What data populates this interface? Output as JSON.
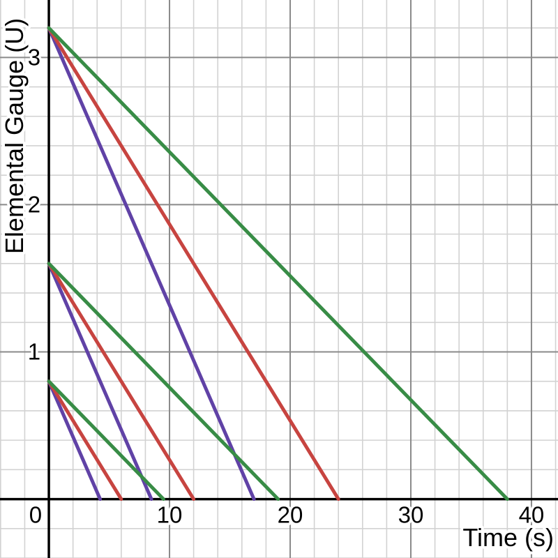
{
  "chart_data": {
    "type": "line",
    "title": "",
    "xlabel": "Time (s)",
    "ylabel": "Elemental Gauge (U)",
    "xlim": [
      -4.05,
      42.2
    ],
    "ylim": [
      -0.4,
      3.39
    ],
    "x_major_ticks": [
      0,
      10,
      20,
      30,
      40
    ],
    "y_major_ticks": [
      1,
      2,
      3
    ],
    "x_minor_step": 2,
    "y_minor_step": 0.2,
    "grid": true,
    "legend_position": "none",
    "series": [
      {
        "name": "purple-0.8U",
        "color": "#6042a6",
        "points": [
          [
            0,
            0.8
          ],
          [
            4.25,
            0
          ]
        ]
      },
      {
        "name": "purple-1.6U",
        "color": "#6042a6",
        "points": [
          [
            0,
            1.6
          ],
          [
            8.5,
            0
          ]
        ]
      },
      {
        "name": "purple-3.2U",
        "color": "#6042a6",
        "points": [
          [
            0,
            3.2
          ],
          [
            17,
            0
          ]
        ]
      },
      {
        "name": "red-0.8U",
        "color": "#c74440",
        "points": [
          [
            0,
            0.8
          ],
          [
            6,
            0
          ]
        ]
      },
      {
        "name": "red-1.6U",
        "color": "#c74440",
        "points": [
          [
            0,
            1.6
          ],
          [
            12,
            0
          ]
        ]
      },
      {
        "name": "red-3.2U",
        "color": "#c74440",
        "points": [
          [
            0,
            3.2
          ],
          [
            24,
            0
          ]
        ]
      },
      {
        "name": "green-0.8U",
        "color": "#388c46",
        "points": [
          [
            0,
            0.8
          ],
          [
            9.5,
            0
          ]
        ]
      },
      {
        "name": "green-1.6U",
        "color": "#388c46",
        "points": [
          [
            0,
            1.6
          ],
          [
            19,
            0
          ]
        ]
      },
      {
        "name": "green-3.2U",
        "color": "#388c46",
        "points": [
          [
            0,
            3.2
          ],
          [
            38,
            0
          ]
        ]
      }
    ]
  },
  "colors": {
    "background": "#ffffff",
    "axis": "#000000",
    "major_grid": "#8a8a8a",
    "minor_grid": "#d2d2d2",
    "label": "#000000",
    "series_purple": "#6042a6",
    "series_red": "#c74440",
    "series_green": "#388c46"
  }
}
